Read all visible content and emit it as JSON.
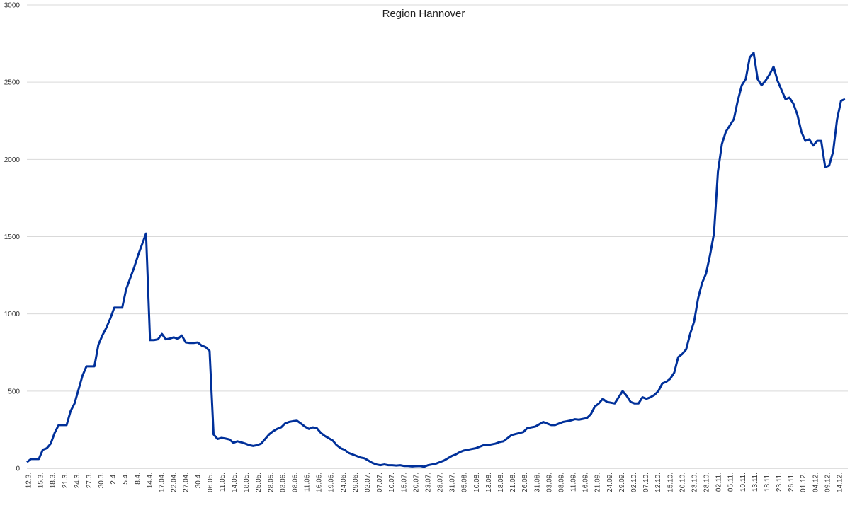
{
  "chart_data": {
    "type": "line",
    "title": "Region Hannover",
    "xlabel": "",
    "ylabel": "",
    "ylim": [
      0,
      3000
    ],
    "yticks": [
      0,
      500,
      1000,
      1500,
      2000,
      2500,
      3000
    ],
    "grid": true,
    "legend": "none",
    "x_tick_labels": [
      "12.3.",
      "15.3.",
      "18.3.",
      "21.3.",
      "24.3.",
      "27.3.",
      "30.3.",
      "2.4.",
      "5.4.",
      "8.4.",
      "14.4.",
      "17.04.",
      "22.04.",
      "27.04.",
      "30.4.",
      "06.05.",
      "11.05.",
      "14.05.",
      "18.05.",
      "25.05.",
      "28.05.",
      "03.06.",
      "08.06.",
      "11.06.",
      "16.06.",
      "19.06.",
      "24.06.",
      "29.06.",
      "02.07.",
      "07.07.",
      "10.07.",
      "15.07.",
      "20.07.",
      "23.07.",
      "28.07.",
      "31.07.",
      "05.08.",
      "10.08.",
      "13.08.",
      "18.08.",
      "21.08.",
      "26.08.",
      "31.08.",
      "03.09.",
      "08.09.",
      "11.09.",
      "16.09.",
      "21.09.",
      "24.09.",
      "29.09.",
      "02.10.",
      "07.10.",
      "12.10.",
      "15.10.",
      "20.10.",
      "23.10.",
      "28.10.",
      "02.11.",
      "05.11.",
      "10.11.",
      "13.11.",
      "18.11.",
      "23.11.",
      "26.11.",
      "01.12.",
      "04.12.",
      "09.12.",
      "14.12."
    ],
    "series": [
      {
        "name": "",
        "color": "#00309a",
        "values": [
          40,
          60,
          60,
          60,
          120,
          130,
          160,
          230,
          280,
          280,
          280,
          370,
          420,
          510,
          600,
          660,
          660,
          660,
          800,
          860,
          910,
          970,
          1040,
          1040,
          1040,
          1160,
          1230,
          1300,
          1380,
          1450,
          1520,
          830,
          830,
          835,
          870,
          835,
          840,
          848,
          838,
          860,
          815,
          812,
          812,
          815,
          795,
          785,
          760,
          220,
          190,
          197,
          193,
          187,
          165,
          175,
          168,
          160,
          150,
          145,
          150,
          160,
          190,
          220,
          240,
          255,
          265,
          290,
          300,
          305,
          308,
          290,
          270,
          255,
          265,
          260,
          230,
          210,
          195,
          180,
          150,
          130,
          120,
          100,
          90,
          80,
          70,
          65,
          50,
          35,
          25,
          20,
          25,
          20,
          20,
          18,
          20,
          15,
          15,
          12,
          14,
          15,
          10,
          20,
          25,
          30,
          40,
          50,
          65,
          80,
          90,
          105,
          115,
          120,
          125,
          130,
          140,
          150,
          150,
          155,
          160,
          170,
          175,
          195,
          215,
          222,
          228,
          235,
          260,
          265,
          270,
          285,
          300,
          290,
          280,
          280,
          290,
          300,
          305,
          310,
          318,
          315,
          320,
          325,
          350,
          400,
          420,
          450,
          430,
          425,
          420,
          460,
          500,
          470,
          430,
          420,
          420,
          460,
          450,
          460,
          475,
          500,
          550,
          560,
          580,
          620,
          720,
          740,
          770,
          870,
          950,
          1100,
          1200,
          1260,
          1380,
          1520,
          1920,
          2100,
          2180,
          2220,
          2260,
          2380,
          2480,
          2520,
          2660,
          2690,
          2520,
          2480,
          2510,
          2550,
          2600,
          2510,
          2450,
          2390,
          2400,
          2360,
          2290,
          2180,
          2120,
          2130,
          2090,
          2120,
          2120,
          1950,
          1960,
          2050,
          2260,
          2380,
          2390
        ]
      }
    ]
  }
}
